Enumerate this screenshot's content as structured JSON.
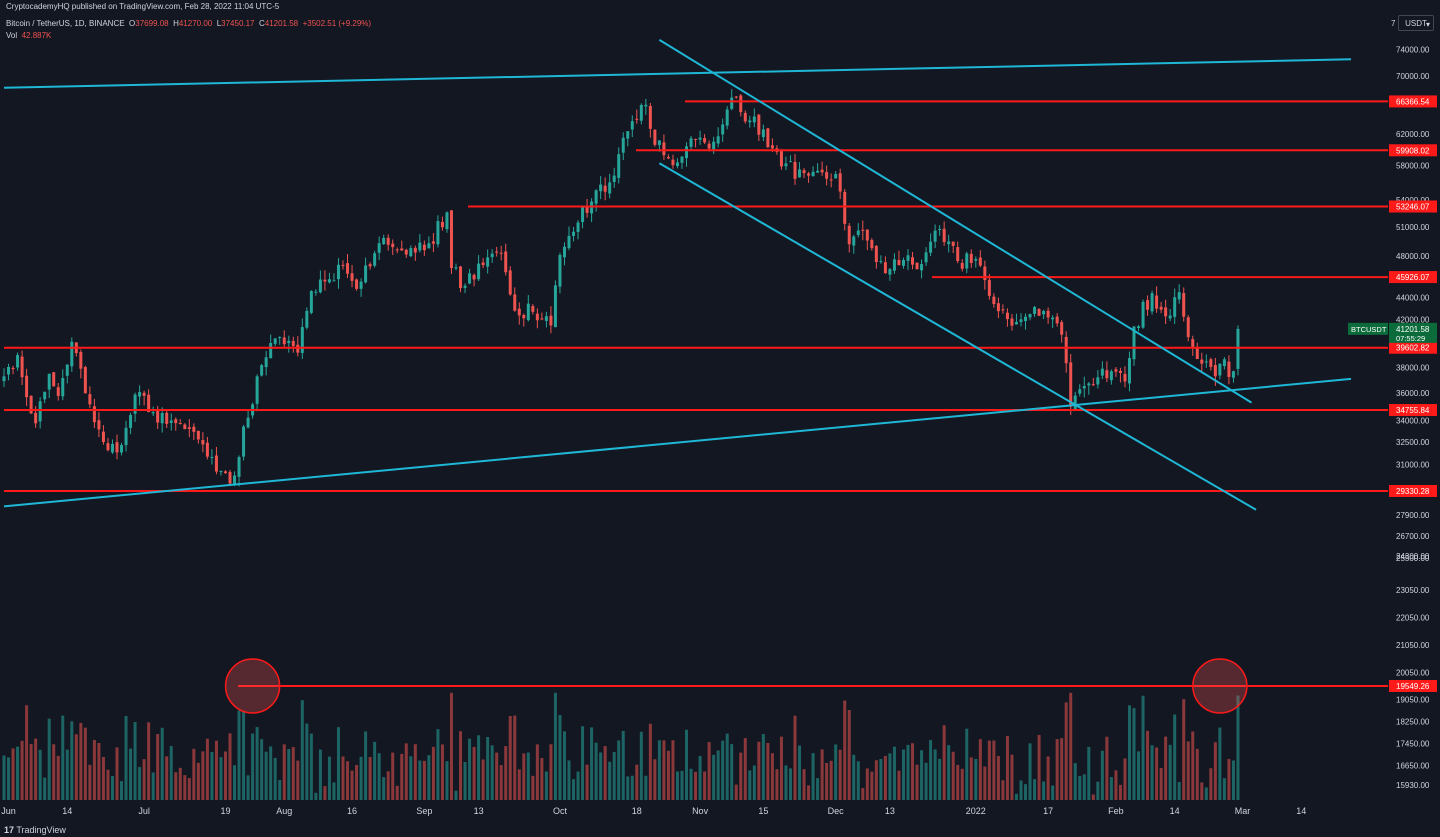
{
  "header": {
    "published": "CryptocademyHQ published on TradingView.com, Feb 28, 2022 11:04 UTC-5",
    "symbol_desc": "Bitcoin / TetherUS, 1D, BINANCE",
    "open_label": "O",
    "open_value": "37699.08",
    "high_label": "H",
    "high_value": "41270.00",
    "low_label": "L",
    "low_value": "37450.17",
    "close_label": "C",
    "close_value": "41201.58",
    "change": "+3502.51 (+9.29%)",
    "vol_label": "Vol",
    "vol_value": "42.887K"
  },
  "scale": {
    "currency": "USDT",
    "currency_icon": "chevron-down-icon",
    "seven": "7"
  },
  "footer": {
    "brand": "TradingView",
    "logo_text": "17"
  },
  "colors": {
    "background": "#131722",
    "up": "#26a69a",
    "down": "#ef5350",
    "level": "#ff1a1a",
    "trendline": "#1fb7d6",
    "axis_text": "#d1d4dc"
  },
  "chart_data": {
    "type": "candlestick",
    "symbol": "BTCUSDT",
    "interval": "1D",
    "price_axis": {
      "log": true,
      "ticks": [
        "74000.00",
        "70000.00",
        "66000.00",
        "62000.00",
        "58000.00",
        "54000.00",
        "51000.00",
        "48000.00",
        "44000.00",
        "42000.00",
        "38000.00",
        "36000.00",
        "34000.00",
        "32500.00",
        "31000.00",
        "27900.00",
        "26700.00",
        "25500.00",
        "24300.00",
        "23050.00",
        "22050.00",
        "21050.00",
        "20050.00",
        "19050.00",
        "18250.00",
        "17450.00",
        "16650.00",
        "15930.00"
      ]
    },
    "time_axis": {
      "start": "2021-05-31",
      "end": "2022-03-20",
      "ticks": [
        {
          "label": "Jun",
          "date": "2021-06-01"
        },
        {
          "label": "14",
          "date": "2021-06-14"
        },
        {
          "label": "Jul",
          "date": "2021-07-01"
        },
        {
          "label": "19",
          "date": "2021-07-19"
        },
        {
          "label": "Aug",
          "date": "2021-08-01"
        },
        {
          "label": "16",
          "date": "2021-08-16"
        },
        {
          "label": "Sep",
          "date": "2021-09-01"
        },
        {
          "label": "13",
          "date": "2021-09-13"
        },
        {
          "label": "Oct",
          "date": "2021-10-01"
        },
        {
          "label": "18",
          "date": "2021-10-18"
        },
        {
          "label": "Nov",
          "date": "2021-11-01"
        },
        {
          "label": "15",
          "date": "2021-11-15"
        },
        {
          "label": "Dec",
          "date": "2021-12-01"
        },
        {
          "label": "13",
          "date": "2021-12-13"
        },
        {
          "label": "2022",
          "date": "2022-01-01"
        },
        {
          "label": "17",
          "date": "2022-01-17"
        },
        {
          "label": "Feb",
          "date": "2022-02-01"
        },
        {
          "label": "14",
          "date": "2022-02-14"
        },
        {
          "label": "Mar",
          "date": "2022-03-01"
        },
        {
          "label": "14",
          "date": "2022-03-14"
        }
      ]
    },
    "series_anchors": [
      [
        "2021-05-31",
        37300
      ],
      [
        "2021-06-03",
        39000
      ],
      [
        "2021-06-07",
        33800
      ],
      [
        "2021-06-10",
        37500
      ],
      [
        "2021-06-12",
        35800
      ],
      [
        "2021-06-15",
        40100
      ],
      [
        "2021-06-18",
        36000
      ],
      [
        "2021-06-22",
        32500
      ],
      [
        "2021-06-25",
        31800
      ],
      [
        "2021-06-29",
        35900
      ],
      [
        "2021-07-03",
        34600
      ],
      [
        "2021-07-07",
        34000
      ],
      [
        "2021-07-12",
        33200
      ],
      [
        "2021-07-16",
        31500
      ],
      [
        "2021-07-20",
        29790
      ],
      [
        "2021-07-24",
        34200
      ],
      [
        "2021-07-26",
        37300
      ],
      [
        "2021-07-29",
        40000
      ],
      [
        "2021-08-01",
        39900
      ],
      [
        "2021-08-04",
        39200
      ],
      [
        "2021-08-07",
        44600
      ],
      [
        "2021-08-10",
        45500
      ],
      [
        "2021-08-14",
        47100
      ],
      [
        "2021-08-17",
        44800
      ],
      [
        "2021-08-22",
        49300
      ],
      [
        "2021-08-25",
        48900
      ],
      [
        "2021-08-29",
        48800
      ],
      [
        "2021-09-02",
        49300
      ],
      [
        "2021-09-06",
        52600
      ],
      [
        "2021-09-07",
        46800
      ],
      [
        "2021-09-10",
        45100
      ],
      [
        "2021-09-14",
        47100
      ],
      [
        "2021-09-18",
        48300
      ],
      [
        "2021-09-21",
        42800
      ],
      [
        "2021-09-25",
        42700
      ],
      [
        "2021-09-29",
        41500
      ],
      [
        "2021-10-01",
        48100
      ],
      [
        "2021-10-05",
        51500
      ],
      [
        "2021-10-08",
        53800
      ],
      [
        "2021-10-12",
        56000
      ],
      [
        "2021-10-15",
        61500
      ],
      [
        "2021-10-20",
        65900
      ],
      [
        "2021-10-22",
        60600
      ],
      [
        "2021-10-27",
        58400
      ],
      [
        "2021-10-31",
        61300
      ],
      [
        "2021-11-04",
        61000
      ],
      [
        "2021-11-08",
        66900
      ],
      [
        "2021-11-10",
        64900
      ],
      [
        "2021-11-13",
        64300
      ],
      [
        "2021-11-16",
        60300
      ],
      [
        "2021-11-19",
        57900
      ],
      [
        "2021-11-24",
        57100
      ],
      [
        "2021-11-28",
        57200
      ],
      [
        "2021-12-01",
        57000
      ],
      [
        "2021-12-04",
        49200
      ],
      [
        "2021-12-07",
        50600
      ],
      [
        "2021-12-10",
        47400
      ],
      [
        "2021-12-13",
        46700
      ],
      [
        "2021-12-16",
        47600
      ],
      [
        "2021-12-19",
        46700
      ],
      [
        "2021-12-24",
        50800
      ],
      [
        "2021-12-28",
        47500
      ],
      [
        "2022-01-01",
        47700
      ],
      [
        "2022-01-05",
        43400
      ],
      [
        "2022-01-10",
        41800
      ],
      [
        "2022-01-13",
        42500
      ],
      [
        "2022-01-17",
        42200
      ],
      [
        "2022-01-20",
        40700
      ],
      [
        "2022-01-22",
        35000
      ],
      [
        "2022-01-24",
        36300
      ],
      [
        "2022-01-29",
        37900
      ],
      [
        "2022-02-03",
        36900
      ],
      [
        "2022-02-05",
        41400
      ],
      [
        "2022-02-09",
        44400
      ],
      [
        "2022-02-12",
        42300
      ],
      [
        "2022-02-15",
        44500
      ],
      [
        "2022-02-17",
        40500
      ],
      [
        "2022-02-20",
        38300
      ],
      [
        "2022-02-23",
        37300
      ],
      [
        "2022-02-24",
        38300
      ],
      [
        "2022-02-27",
        37700
      ],
      [
        "2022-02-28",
        41201.58
      ]
    ],
    "horizontal_levels": [
      66366.54,
      59908.02,
      53246.07,
      45926.07,
      39602.82,
      34755.84,
      29330.28
    ],
    "level_labels": [
      "66366.54",
      "59908.02",
      "53246.07",
      "45926.07",
      "39602.82",
      "34755.84",
      "29330.28"
    ],
    "trendlines": [
      {
        "name": "upper-channel",
        "from": [
          "2021-05-31",
          68300
        ],
        "to": [
          "2022-03-25",
          72500
        ]
      },
      {
        "name": "lower-support",
        "from": [
          "2021-05-31",
          28400
        ],
        "to": [
          "2022-03-25",
          37100
        ]
      },
      {
        "name": "descending-top",
        "from": [
          "2021-10-23",
          75500
        ],
        "to": [
          "2022-03-03",
          35300
        ]
      },
      {
        "name": "descending-bottom",
        "from": [
          "2021-10-23",
          58300
        ],
        "to": [
          "2022-03-04",
          28200
        ]
      }
    ],
    "volume_level": 19549.26,
    "volume_level_label": "19549.26",
    "volume_circles": [
      {
        "date": "2021-07-25",
        "value": 19549.26
      },
      {
        "date": "2022-02-24",
        "value": 19549.26
      }
    ],
    "last_price": {
      "symbol": "BTCUSDT",
      "price": "41201.58",
      "countdown": "07:55:29"
    }
  }
}
